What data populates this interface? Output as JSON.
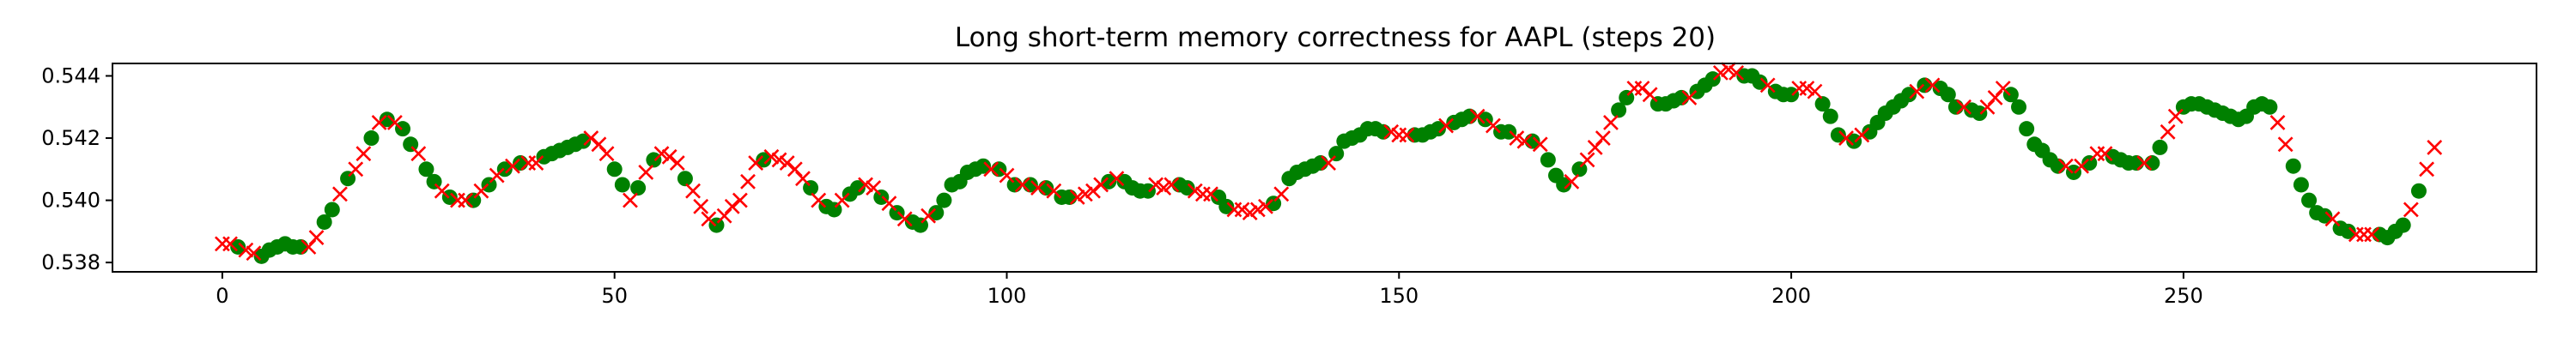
{
  "chart_data": {
    "type": "scatter",
    "title": "Long short-term memory correctness for AAPL (steps 20)",
    "xlabel": "",
    "ylabel": "",
    "xlim": [
      -14,
      295
    ],
    "ylim": [
      0.5377,
      0.5444
    ],
    "xticks": [
      0,
      50,
      100,
      150,
      200,
      250
    ],
    "xtick_labels": [
      "0",
      "50",
      "100",
      "150",
      "200",
      "250"
    ],
    "yticks": [
      0.538,
      0.54,
      0.542,
      0.544
    ],
    "ytick_labels": [
      "0.538",
      "0.540",
      "0.542",
      "0.544"
    ],
    "grid": false,
    "legend": "none",
    "series": [
      {
        "marker": "circle",
        "color": "#008000",
        "points": [
          [
            2,
            0.5385
          ],
          [
            5,
            0.5382
          ],
          [
            6,
            0.5384
          ],
          [
            7,
            0.5385
          ],
          [
            8,
            0.5386
          ],
          [
            9,
            0.5385
          ],
          [
            10,
            0.5385
          ],
          [
            13,
            0.5393
          ],
          [
            14,
            0.5397
          ],
          [
            16,
            0.5407
          ],
          [
            19,
            0.542
          ],
          [
            21,
            0.5426
          ],
          [
            23,
            0.5423
          ],
          [
            24,
            0.5418
          ],
          [
            26,
            0.541
          ],
          [
            27,
            0.5406
          ],
          [
            29,
            0.5401
          ],
          [
            32,
            0.54
          ],
          [
            34,
            0.5405
          ],
          [
            36,
            0.541
          ],
          [
            38,
            0.5412
          ],
          [
            41,
            0.5414
          ],
          [
            42,
            0.5415
          ],
          [
            43,
            0.5416
          ],
          [
            44,
            0.5417
          ],
          [
            45,
            0.5418
          ],
          [
            46,
            0.5419
          ],
          [
            50,
            0.541
          ],
          [
            51,
            0.5405
          ],
          [
            53,
            0.5404
          ],
          [
            55,
            0.5413
          ],
          [
            59,
            0.5407
          ],
          [
            63,
            0.5392
          ],
          [
            69,
            0.5413
          ],
          [
            75,
            0.5404
          ],
          [
            77,
            0.5398
          ],
          [
            78,
            0.5397
          ],
          [
            80,
            0.5402
          ],
          [
            81,
            0.5404
          ],
          [
            84,
            0.5401
          ],
          [
            86,
            0.5396
          ],
          [
            88,
            0.5393
          ],
          [
            89,
            0.5392
          ],
          [
            91,
            0.5396
          ],
          [
            92,
            0.54
          ],
          [
            93,
            0.5405
          ],
          [
            94,
            0.5406
          ],
          [
            95,
            0.5409
          ],
          [
            96,
            0.541
          ],
          [
            97,
            0.5411
          ],
          [
            99,
            0.541
          ],
          [
            101,
            0.5405
          ],
          [
            103,
            0.5405
          ],
          [
            105,
            0.5404
          ],
          [
            107,
            0.5401
          ],
          [
            108,
            0.5401
          ],
          [
            113,
            0.5406
          ],
          [
            115,
            0.5406
          ],
          [
            116,
            0.5404
          ],
          [
            117,
            0.5403
          ],
          [
            118,
            0.5403
          ],
          [
            122,
            0.5405
          ],
          [
            123,
            0.5404
          ],
          [
            127,
            0.5401
          ],
          [
            128,
            0.5398
          ],
          [
            134,
            0.5399
          ],
          [
            136,
            0.5407
          ],
          [
            137,
            0.5409
          ],
          [
            138,
            0.541
          ],
          [
            139,
            0.5411
          ],
          [
            140,
            0.5412
          ],
          [
            142,
            0.5415
          ],
          [
            143,
            0.5419
          ],
          [
            144,
            0.542
          ],
          [
            145,
            0.5421
          ],
          [
            146,
            0.5423
          ],
          [
            147,
            0.5423
          ],
          [
            148,
            0.5422
          ],
          [
            152,
            0.5421
          ],
          [
            153,
            0.5421
          ],
          [
            154,
            0.5422
          ],
          [
            155,
            0.5423
          ],
          [
            157,
            0.5425
          ],
          [
            158,
            0.5426
          ],
          [
            159,
            0.5427
          ],
          [
            161,
            0.5426
          ],
          [
            163,
            0.5422
          ],
          [
            164,
            0.5422
          ],
          [
            167,
            0.5419
          ],
          [
            169,
            0.5413
          ],
          [
            170,
            0.5408
          ],
          [
            171,
            0.5405
          ],
          [
            173,
            0.541
          ],
          [
            178,
            0.5429
          ],
          [
            179,
            0.5433
          ],
          [
            183,
            0.5431
          ],
          [
            184,
            0.5431
          ],
          [
            185,
            0.5432
          ],
          [
            186,
            0.5433
          ],
          [
            188,
            0.5435
          ],
          [
            189,
            0.5437
          ],
          [
            190,
            0.5439
          ],
          [
            194,
            0.544
          ],
          [
            195,
            0.544
          ],
          [
            196,
            0.5438
          ],
          [
            198,
            0.5435
          ],
          [
            199,
            0.5434
          ],
          [
            200,
            0.5434
          ],
          [
            204,
            0.5431
          ],
          [
            205,
            0.5427
          ],
          [
            206,
            0.5421
          ],
          [
            208,
            0.5419
          ],
          [
            210,
            0.5422
          ],
          [
            211,
            0.5425
          ],
          [
            212,
            0.5428
          ],
          [
            213,
            0.543
          ],
          [
            214,
            0.5432
          ],
          [
            215,
            0.5434
          ],
          [
            217,
            0.5437
          ],
          [
            219,
            0.5436
          ],
          [
            220,
            0.5434
          ],
          [
            221,
            0.543
          ],
          [
            223,
            0.5429
          ],
          [
            224,
            0.5428
          ],
          [
            228,
            0.5434
          ],
          [
            229,
            0.543
          ],
          [
            230,
            0.5423
          ],
          [
            231,
            0.5418
          ],
          [
            232,
            0.5416
          ],
          [
            233,
            0.5413
          ],
          [
            234,
            0.5411
          ],
          [
            236,
            0.5409
          ],
          [
            238,
            0.5412
          ],
          [
            241,
            0.5414
          ],
          [
            242,
            0.5413
          ],
          [
            243,
            0.5412
          ],
          [
            244,
            0.5412
          ],
          [
            246,
            0.5412
          ],
          [
            247,
            0.5417
          ],
          [
            250,
            0.543
          ],
          [
            251,
            0.5431
          ],
          [
            252,
            0.5431
          ],
          [
            253,
            0.543
          ],
          [
            254,
            0.5429
          ],
          [
            255,
            0.5428
          ],
          [
            256,
            0.5427
          ],
          [
            257,
            0.5426
          ],
          [
            258,
            0.5427
          ],
          [
            259,
            0.543
          ],
          [
            260,
            0.5431
          ],
          [
            261,
            0.543
          ],
          [
            264,
            0.5411
          ],
          [
            265,
            0.5405
          ],
          [
            266,
            0.54
          ],
          [
            267,
            0.5396
          ],
          [
            268,
            0.5395
          ],
          [
            270,
            0.5391
          ],
          [
            271,
            0.539
          ],
          [
            275,
            0.5389
          ],
          [
            276,
            0.5388
          ],
          [
            277,
            0.539
          ],
          [
            278,
            0.5392
          ],
          [
            280,
            0.5403
          ]
        ]
      },
      {
        "marker": "x",
        "color": "#ff0000",
        "points": [
          [
            0,
            0.5386
          ],
          [
            1,
            0.5386
          ],
          [
            3,
            0.5384
          ],
          [
            4,
            0.5383
          ],
          [
            11,
            0.5385
          ],
          [
            12,
            0.5388
          ],
          [
            15,
            0.5402
          ],
          [
            17,
            0.541
          ],
          [
            18,
            0.5415
          ],
          [
            20,
            0.5425
          ],
          [
            22,
            0.5425
          ],
          [
            25,
            0.5415
          ],
          [
            28,
            0.5403
          ],
          [
            30,
            0.54
          ],
          [
            31,
            0.54
          ],
          [
            33,
            0.5403
          ],
          [
            35,
            0.5408
          ],
          [
            37,
            0.5411
          ],
          [
            39,
            0.5412
          ],
          [
            40,
            0.5412
          ],
          [
            47,
            0.542
          ],
          [
            48,
            0.5418
          ],
          [
            49,
            0.5415
          ],
          [
            52,
            0.54
          ],
          [
            54,
            0.5409
          ],
          [
            56,
            0.5415
          ],
          [
            57,
            0.5414
          ],
          [
            58,
            0.5412
          ],
          [
            60,
            0.5403
          ],
          [
            61,
            0.5398
          ],
          [
            62,
            0.5394
          ],
          [
            64,
            0.5395
          ],
          [
            65,
            0.5398
          ],
          [
            66,
            0.54
          ],
          [
            67,
            0.5406
          ],
          [
            68,
            0.5412
          ],
          [
            70,
            0.5414
          ],
          [
            71,
            0.5413
          ],
          [
            72,
            0.5412
          ],
          [
            73,
            0.541
          ],
          [
            74,
            0.5407
          ],
          [
            76,
            0.54
          ],
          [
            79,
            0.54
          ],
          [
            82,
            0.5405
          ],
          [
            83,
            0.5404
          ],
          [
            85,
            0.5399
          ],
          [
            87,
            0.5394
          ],
          [
            90,
            0.5395
          ],
          [
            98,
            0.541
          ],
          [
            100,
            0.5408
          ],
          [
            102,
            0.5405
          ],
          [
            104,
            0.5404
          ],
          [
            106,
            0.5403
          ],
          [
            109,
            0.5401
          ],
          [
            110,
            0.5402
          ],
          [
            111,
            0.5403
          ],
          [
            112,
            0.5405
          ],
          [
            114,
            0.5407
          ],
          [
            119,
            0.5405
          ],
          [
            120,
            0.5404
          ],
          [
            121,
            0.5405
          ],
          [
            124,
            0.5403
          ],
          [
            125,
            0.5402
          ],
          [
            126,
            0.5402
          ],
          [
            129,
            0.5397
          ],
          [
            130,
            0.5397
          ],
          [
            131,
            0.5396
          ],
          [
            132,
            0.5397
          ],
          [
            133,
            0.5398
          ],
          [
            135,
            0.5402
          ],
          [
            141,
            0.5412
          ],
          [
            149,
            0.5422
          ],
          [
            150,
            0.5421
          ],
          [
            151,
            0.5421
          ],
          [
            156,
            0.5424
          ],
          [
            160,
            0.5427
          ],
          [
            162,
            0.5424
          ],
          [
            165,
            0.542
          ],
          [
            166,
            0.5419
          ],
          [
            168,
            0.5418
          ],
          [
            172,
            0.5406
          ],
          [
            174,
            0.5413
          ],
          [
            175,
            0.5417
          ],
          [
            176,
            0.542
          ],
          [
            177,
            0.5425
          ],
          [
            180,
            0.5436
          ],
          [
            181,
            0.5436
          ],
          [
            182,
            0.5434
          ],
          [
            187,
            0.5433
          ],
          [
            191,
            0.5441
          ],
          [
            192,
            0.5442
          ],
          [
            193,
            0.5441
          ],
          [
            197,
            0.5437
          ],
          [
            201,
            0.5436
          ],
          [
            202,
            0.5436
          ],
          [
            203,
            0.5435
          ],
          [
            207,
            0.542
          ],
          [
            209,
            0.5421
          ],
          [
            216,
            0.5435
          ],
          [
            218,
            0.5437
          ],
          [
            222,
            0.543
          ],
          [
            225,
            0.543
          ],
          [
            226,
            0.5433
          ],
          [
            227,
            0.5436
          ],
          [
            235,
            0.5411
          ],
          [
            237,
            0.5411
          ],
          [
            239,
            0.5415
          ],
          [
            240,
            0.5415
          ],
          [
            245,
            0.5412
          ],
          [
            248,
            0.5422
          ],
          [
            249,
            0.5427
          ],
          [
            262,
            0.5425
          ],
          [
            263,
            0.5418
          ],
          [
            269,
            0.5394
          ],
          [
            272,
            0.5389
          ],
          [
            273,
            0.5389
          ],
          [
            274,
            0.5389
          ],
          [
            279,
            0.5397
          ],
          [
            281,
            0.541
          ],
          [
            282,
            0.5417
          ]
        ]
      }
    ]
  }
}
